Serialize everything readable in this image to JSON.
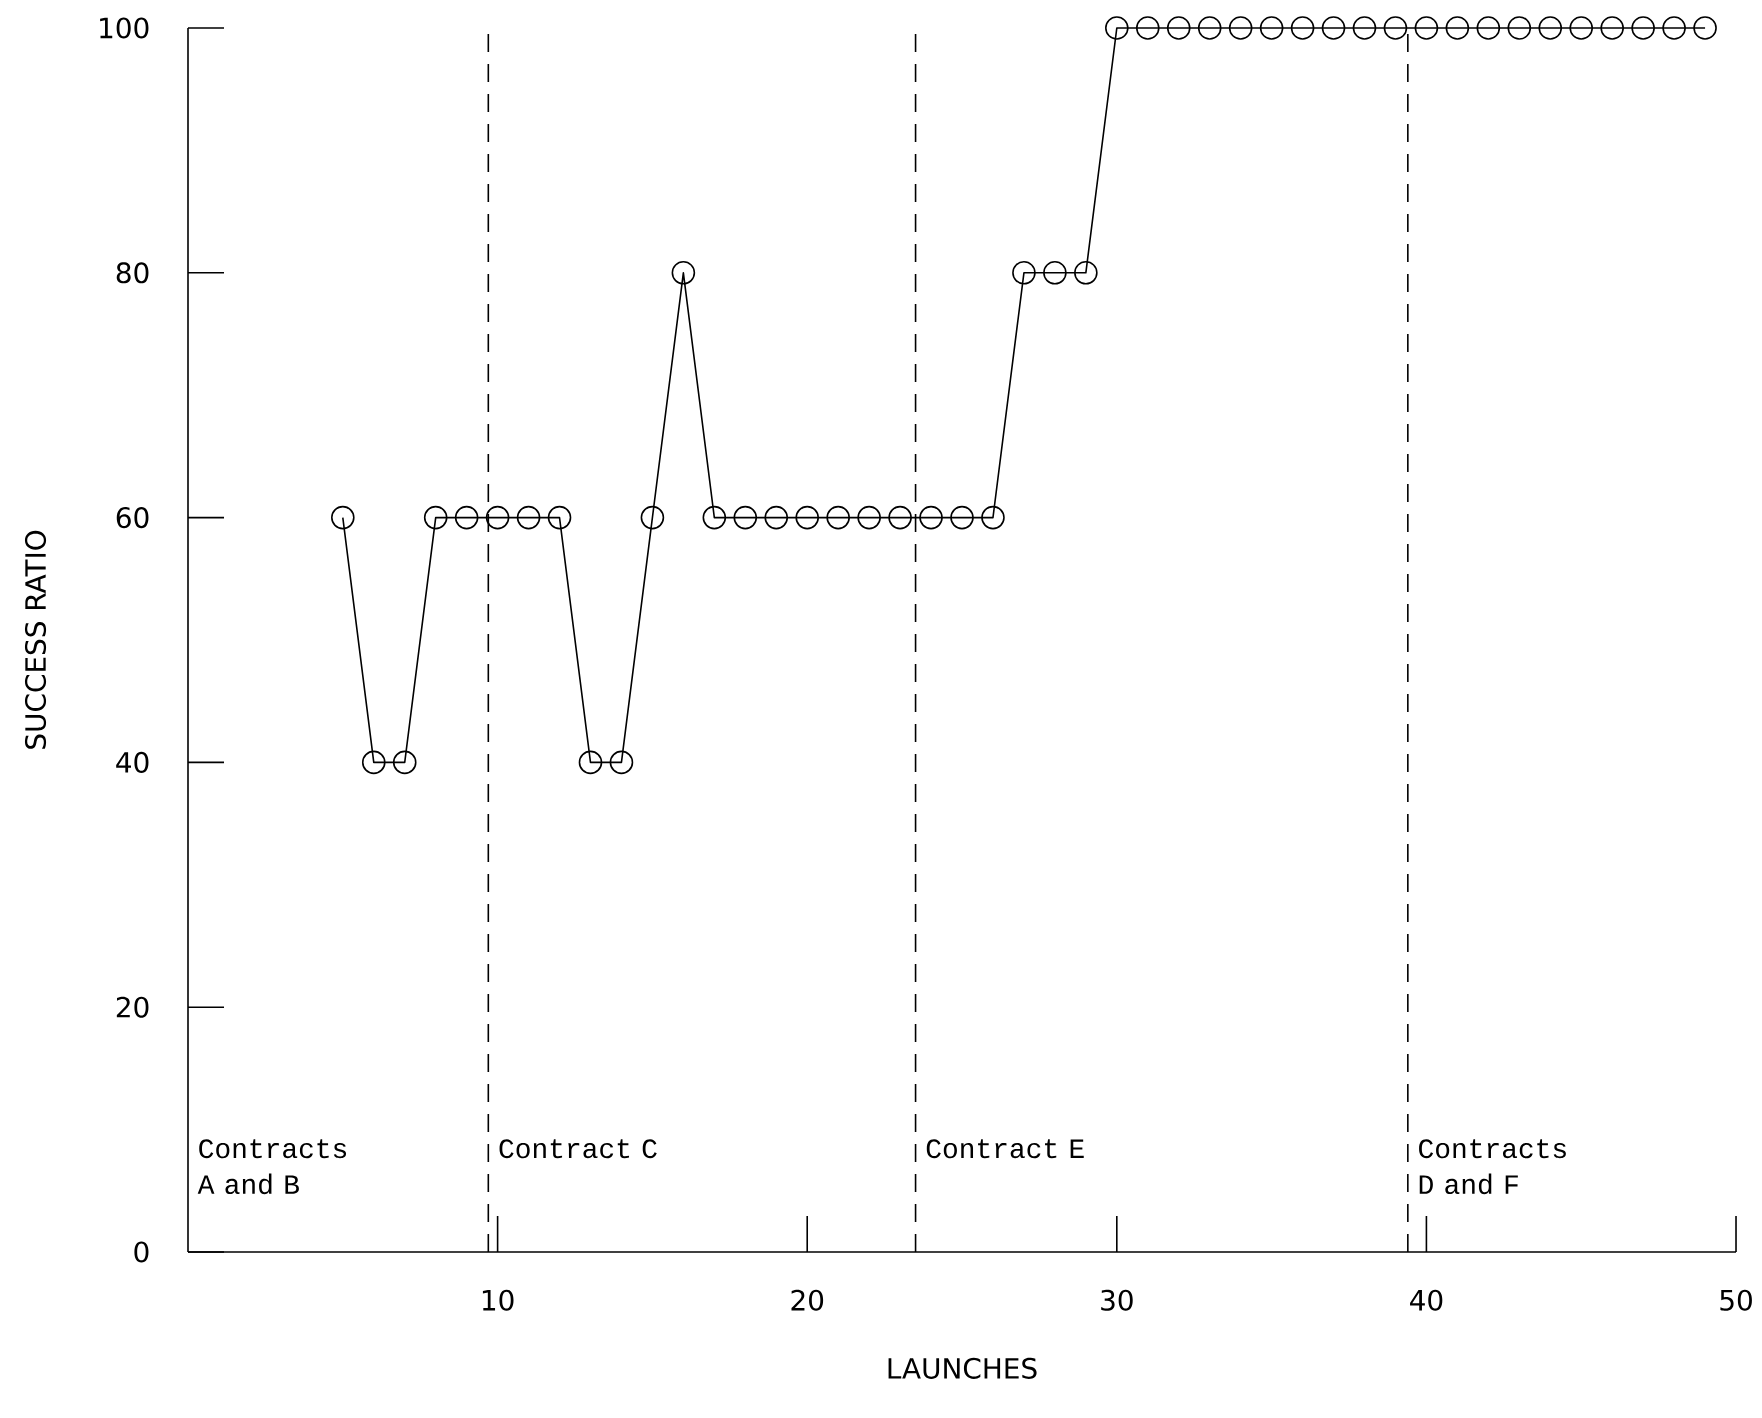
{
  "chart_data": {
    "type": "line",
    "xlabel": "LAUNCHES",
    "ylabel": "SUCCESS RATIO",
    "series": [
      {
        "color": "#000000",
        "x": [
          5,
          6,
          7,
          8,
          9,
          10,
          11,
          12,
          13,
          14,
          15,
          16,
          17,
          18,
          19,
          20,
          21,
          22,
          23,
          24,
          25,
          26,
          27,
          28,
          29,
          30,
          31,
          32,
          33,
          34,
          35,
          36,
          37,
          38,
          39,
          40,
          41,
          42,
          43,
          44,
          45,
          46,
          47,
          48,
          49
        ],
        "values": [
          60,
          40,
          40,
          60,
          60,
          60,
          60,
          60,
          40,
          40,
          60,
          80,
          60,
          60,
          60,
          60,
          60,
          60,
          60,
          60,
          60,
          60,
          80,
          80,
          80,
          100,
          100,
          100,
          100,
          100,
          100,
          100,
          100,
          100,
          100,
          100,
          100,
          100,
          100,
          100,
          100,
          100,
          100,
          100,
          100
        ]
      }
    ],
    "xlim": [
      0,
      50
    ],
    "ylim": [
      0,
      100
    ],
    "xticks": [
      10,
      20,
      30,
      40,
      50
    ],
    "yticks": [
      0,
      20,
      40,
      60,
      80,
      100
    ],
    "ref_lines": [
      {
        "axis": "x",
        "value": 9.7,
        "line_style": "dashed"
      },
      {
        "axis": "x",
        "value": 23.5,
        "line_style": "dashed"
      },
      {
        "axis": "x",
        "value": 39.4,
        "line_style": "dashed"
      }
    ],
    "annotations": [
      "Contracts A and B",
      "Contract C",
      "Contract E",
      "Contracts D and F"
    ],
    "marker": "circle",
    "line_style": "solid"
  }
}
